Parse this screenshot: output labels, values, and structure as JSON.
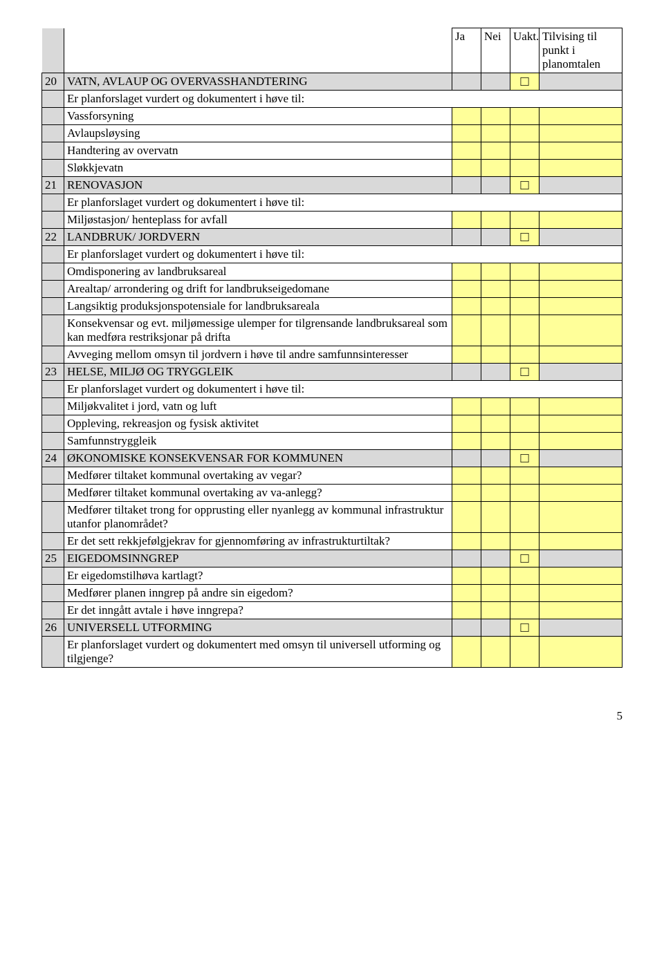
{
  "headers": {
    "ja": "Ja",
    "nei": "Nei",
    "uakt": "Uakt.",
    "tilv": "Tilvising til punkt i planomtalen"
  },
  "checkbox_glyph": "□",
  "prompts": {
    "vurdert": "Er planforslaget vurdert og dokumentert i høve til:",
    "vurdert_uu": "Er planforslaget vurdert og dokumentert med omsyn til universell utforming og tilgjenge?"
  },
  "s20": {
    "num": "20",
    "title": "VATN, AVLAUP OG OVERVASSHANDTERING",
    "items": [
      "Vassforsyning",
      "Avlaupsløysing",
      "Handtering av overvatn",
      "Sløkkjevatn"
    ]
  },
  "s21": {
    "num": "21",
    "title": "RENOVASJON",
    "items": [
      "Miljøstasjon/ henteplass for avfall"
    ]
  },
  "s22": {
    "num": "22",
    "title": "LANDBRUK/ JORDVERN",
    "items": [
      "Omdisponering av landbruksareal",
      "Arealtap/ arrondering og drift for landbrukseigedomane",
      "Langsiktig produksjonspotensiale for landbruksareala",
      "Konsekvensar og evt. miljømessige ulemper for tilgrensande landbruksareal som kan medføra restriksjonar på drifta",
      "Avveging mellom omsyn til jordvern i høve til andre samfunnsinteresser"
    ]
  },
  "s23": {
    "num": "23",
    "title": "HELSE, MILJØ OG TRYGGLEIK",
    "items": [
      "Miljøkvalitet i jord, vatn og luft",
      "Oppleving, rekreasjon og fysisk aktivitet",
      "Samfunnstryggleik"
    ]
  },
  "s24": {
    "num": "24",
    "title": "ØKONOMISKE KONSEKVENSAR FOR KOMMUNEN",
    "items": [
      "Medfører tiltaket kommunal overtaking av vegar?",
      "Medfører tiltaket kommunal overtaking av va-anlegg?",
      "Medfører tiltaket trong for opprusting eller nyanlegg av kommunal infrastruktur utanfor planområdet?",
      "Er det sett rekkjefølgjekrav for gjennomføring av infrastrukturtiltak?"
    ]
  },
  "s25": {
    "num": "25",
    "title": "EIGEDOMSINNGREP",
    "items": [
      "Er eigedomstilhøva kartlagt?",
      "Medfører planen inngrep på andre sin eigedom?",
      "Er det inngått avtale i høve inngrepa?"
    ]
  },
  "s26": {
    "num": "26",
    "title": "UNIVERSELL UTFORMING"
  },
  "page_number": "5"
}
